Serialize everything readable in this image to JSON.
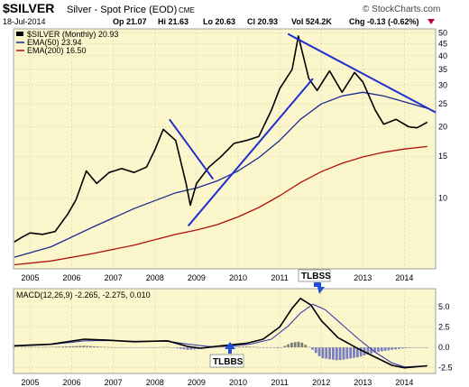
{
  "header": {
    "symbol": "$SILVER",
    "name": "Silver - Spot Price (EOD)",
    "exchange": "CME",
    "date": "18-Jul-2014",
    "open": "Op 21.07",
    "high": "Hi 21.63",
    "low": "Lo 20.63",
    "close": "Cl 20.93",
    "volume": "Vol 524.2K",
    "change": "Chg -0.13 (-0.62%)",
    "watermark": "© StockCharts.com"
  },
  "colors": {
    "panel_bg": "#fbf6cc",
    "price": "#000000",
    "ema50": "#1c2a8f",
    "ema200": "#b01010",
    "trendline": "#1f2fd0",
    "histogram": "#7b7fc0",
    "histogram_pos": "#7b7b7b",
    "annotation": "#1f4fd8"
  },
  "chart_data": [
    {
      "type": "line",
      "panel": "price",
      "scale": "log",
      "ylim": [
        5,
        52
      ],
      "xlim": [
        2004.6,
        2014.75
      ],
      "y_ticks": [
        10,
        15,
        20,
        25,
        30,
        35,
        40,
        45,
        50
      ],
      "x_ticks": [
        "2005",
        "2006",
        "2007",
        "2008",
        "2009",
        "2010",
        "2011",
        "2012",
        "2013",
        "2014"
      ],
      "x_tick_values": [
        2005,
        2006,
        2007,
        2008,
        2009,
        2010,
        2011,
        2012,
        2013,
        2014
      ],
      "grid": true,
      "legend": "top-left",
      "legend_entries": [
        "$SILVER (Monthly) 20.93",
        "EMA(50) 23.94",
        "EMA(200) 16.50"
      ],
      "series": [
        {
          "name": "$SILVER (Monthly)",
          "x": [
            2004.62,
            2004.8,
            2005.0,
            2005.3,
            2005.6,
            2005.9,
            2006.1,
            2006.35,
            2006.6,
            2006.9,
            2007.2,
            2007.5,
            2007.8,
            2008.0,
            2008.2,
            2008.5,
            2008.75,
            2008.85,
            2009.0,
            2009.3,
            2009.6,
            2009.9,
            2010.2,
            2010.5,
            2010.8,
            2011.0,
            2011.3,
            2011.45,
            2011.7,
            2011.9,
            2012.2,
            2012.5,
            2012.8,
            2013.0,
            2013.3,
            2013.5,
            2013.8,
            2014.1,
            2014.3,
            2014.55
          ],
          "values": [
            6.5,
            6.8,
            7.1,
            7.0,
            7.2,
            8.5,
            9.8,
            13.0,
            11.5,
            12.8,
            13.3,
            12.8,
            13.5,
            16.0,
            19.5,
            17.5,
            11.5,
            9.3,
            11.5,
            13.5,
            15.0,
            17.0,
            17.5,
            18.2,
            23.5,
            29.0,
            35.0,
            48.5,
            32.0,
            28.5,
            34.5,
            28.0,
            34.0,
            31.0,
            23.5,
            20.5,
            21.5,
            20.0,
            19.8,
            20.93
          ]
        },
        {
          "name": "EMA(50)",
          "x": [
            2004.62,
            2005.5,
            2006.5,
            2007.5,
            2008.5,
            2009.0,
            2009.5,
            2010.0,
            2010.5,
            2011.0,
            2011.5,
            2012.0,
            2012.5,
            2013.0,
            2013.5,
            2014.0,
            2014.55
          ],
          "values": [
            5.6,
            6.2,
            7.5,
            9.0,
            10.5,
            11.0,
            11.8,
            13.0,
            14.8,
            17.5,
            21.5,
            25.0,
            27.0,
            28.0,
            27.0,
            25.5,
            23.94
          ]
        },
        {
          "name": "EMA(200)",
          "x": [
            2004.62,
            2005.5,
            2006.5,
            2007.5,
            2008.5,
            2009.0,
            2009.5,
            2010.0,
            2010.5,
            2011.0,
            2011.5,
            2012.0,
            2012.5,
            2013.0,
            2013.5,
            2014.0,
            2014.55
          ],
          "values": [
            5.2,
            5.4,
            5.8,
            6.3,
            7.0,
            7.3,
            7.7,
            8.3,
            9.1,
            10.2,
            11.6,
            12.9,
            14.0,
            14.9,
            15.6,
            16.1,
            16.5
          ]
        }
      ],
      "trendlines": [
        {
          "from": [
            2008.35,
            21.5
          ],
          "to": [
            2009.4,
            12.0
          ]
        },
        {
          "from": [
            2008.8,
            7.6
          ],
          "to": [
            2011.8,
            32.0
          ]
        },
        {
          "from": [
            2011.2,
            49.5
          ],
          "to": [
            2014.75,
            23.0
          ]
        }
      ]
    },
    {
      "type": "line",
      "panel": "macd",
      "title": "MACD(12,26,9) -2.265, -2.275, 0.010",
      "ylim": [
        -3.2,
        7.2
      ],
      "xlim": [
        2004.6,
        2014.75
      ],
      "y_ticks": [
        -2.5,
        0.0,
        2.5,
        5.0
      ],
      "y_tick_labels": [
        "-2.5",
        "0.0",
        "2.5",
        "5.0"
      ],
      "x_ticks": [
        "2005",
        "2006",
        "2007",
        "2008",
        "2009",
        "2010",
        "2011",
        "2012",
        "2013",
        "2014"
      ],
      "x_tick_values": [
        2005,
        2006,
        2007,
        2008,
        2009,
        2010,
        2011,
        2012,
        2013,
        2014
      ],
      "series": [
        {
          "name": "MACD",
          "x": [
            2004.62,
            2005.5,
            2006.3,
            2006.8,
            2007.5,
            2008.3,
            2008.8,
            2009.1,
            2009.6,
            2010.2,
            2010.6,
            2011.0,
            2011.3,
            2011.5,
            2011.75,
            2012.0,
            2012.4,
            2012.9,
            2013.3,
            2013.7,
            2014.0,
            2014.55
          ],
          "values": [
            0.2,
            0.4,
            1.0,
            0.9,
            0.7,
            0.8,
            0.1,
            -0.1,
            0.2,
            0.5,
            1.0,
            2.5,
            4.8,
            6.0,
            5.2,
            3.3,
            1.2,
            -0.2,
            -1.2,
            -2.2,
            -2.5,
            -2.265
          ]
        },
        {
          "name": "Signal",
          "x": [
            2004.62,
            2005.5,
            2006.3,
            2006.8,
            2007.5,
            2008.3,
            2008.8,
            2009.3,
            2009.8,
            2010.3,
            2010.8,
            2011.2,
            2011.5,
            2011.8,
            2012.1,
            2012.5,
            2012.9,
            2013.3,
            2013.7,
            2014.0,
            2014.55
          ],
          "values": [
            0.15,
            0.35,
            0.8,
            0.85,
            0.75,
            0.75,
            0.4,
            0.1,
            0.15,
            0.4,
            1.0,
            2.6,
            4.2,
            5.3,
            4.6,
            2.8,
            1.0,
            -0.6,
            -1.9,
            -2.4,
            -2.275
          ]
        },
        {
          "name": "Histogram",
          "x": [
            2004.62,
            2005.5,
            2006.3,
            2006.8,
            2007.5,
            2008.3,
            2008.8,
            2009.1,
            2009.6,
            2010.2,
            2010.6,
            2011.0,
            2011.3,
            2011.5,
            2011.75,
            2012.0,
            2012.4,
            2012.9,
            2013.3,
            2013.7,
            2014.0,
            2014.55
          ],
          "values": [
            0.05,
            0.05,
            0.2,
            0.05,
            -0.05,
            0.05,
            -0.3,
            -0.2,
            0.05,
            0.1,
            0.0,
            -0.1,
            0.6,
            0.7,
            -0.1,
            -1.3,
            -1.6,
            -1.2,
            -0.6,
            -0.3,
            -0.1,
            0.01
          ]
        }
      ]
    }
  ],
  "annotations": [
    {
      "label": "TLBSS",
      "x": 2011.9,
      "panel": "macd"
    },
    {
      "label": "TLBBS",
      "x": 2009.2,
      "panel": "macd"
    }
  ]
}
